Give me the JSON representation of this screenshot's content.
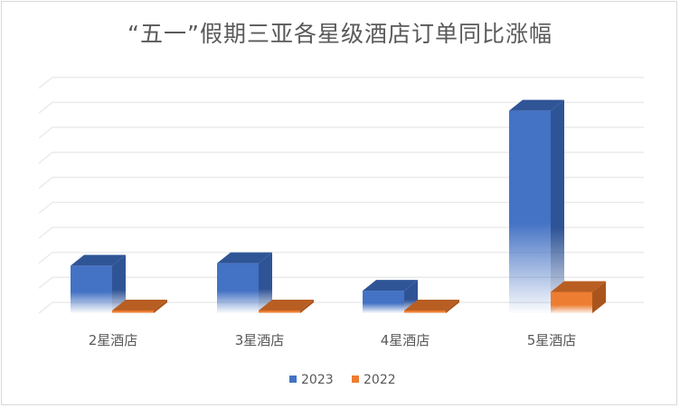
{
  "chart_data": {
    "type": "bar",
    "title": "“五一”假期三亚各星级酒店订单同比涨幅",
    "categories": [
      "2星酒店",
      "3星酒店",
      "4星酒店",
      "5星酒店"
    ],
    "series": [
      {
        "name": "2023",
        "values": [
          1.9,
          2.0,
          0.9,
          8.1
        ],
        "color": "#4472c4"
      },
      {
        "name": "2022",
        "values": [
          0.1,
          0.1,
          0.05,
          0.85
        ],
        "color": "#ed7d31"
      }
    ],
    "xlabel": "",
    "ylabel": "",
    "ylim": [
      0,
      9
    ],
    "grid": true,
    "legend": "bottom"
  }
}
